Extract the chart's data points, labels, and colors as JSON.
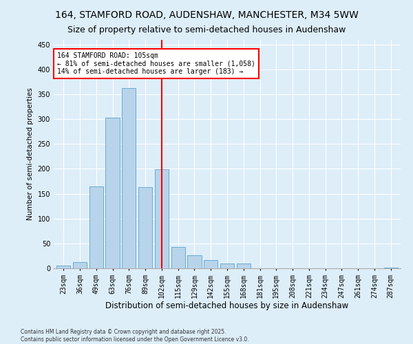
{
  "title1": "164, STAMFORD ROAD, AUDENSHAW, MANCHESTER, M34 5WW",
  "title2": "Size of property relative to semi-detached houses in Audenshaw",
  "xlabel": "Distribution of semi-detached houses by size in Audenshaw",
  "ylabel": "Number of semi-detached properties",
  "categories": [
    "23sqm",
    "36sqm",
    "49sqm",
    "63sqm",
    "76sqm",
    "89sqm",
    "102sqm",
    "115sqm",
    "129sqm",
    "142sqm",
    "155sqm",
    "168sqm",
    "181sqm",
    "195sqm",
    "208sqm",
    "221sqm",
    "234sqm",
    "247sqm",
    "261sqm",
    "274sqm",
    "287sqm"
  ],
  "values": [
    5,
    13,
    165,
    303,
    363,
    163,
    199,
    43,
    26,
    17,
    10,
    9,
    0,
    0,
    0,
    0,
    0,
    0,
    0,
    0,
    2
  ],
  "bar_color": "#b8d4ea",
  "bar_edge_color": "#6aaad4",
  "vline_x_index": 6,
  "vline_color": "red",
  "annotation_line1": "164 STAMFORD ROAD: 105sqm",
  "annotation_line2": "← 81% of semi-detached houses are smaller (1,058)",
  "annotation_line3": "14% of semi-detached houses are larger (183) →",
  "annotation_box_color": "white",
  "annotation_box_edge_color": "red",
  "ylim": [
    0,
    460
  ],
  "yticks": [
    0,
    50,
    100,
    150,
    200,
    250,
    300,
    350,
    400,
    450
  ],
  "footer1": "Contains HM Land Registry data © Crown copyright and database right 2025.",
  "footer2": "Contains public sector information licensed under the Open Government Licence v3.0.",
  "bg_color": "#ddeef9",
  "plot_bg_color": "#ddeef9",
  "title1_fontsize": 10,
  "title2_fontsize": 9,
  "xlabel_fontsize": 8.5,
  "ylabel_fontsize": 7.5,
  "tick_fontsize": 7,
  "annotation_fontsize": 7,
  "footer_fontsize": 5.5
}
